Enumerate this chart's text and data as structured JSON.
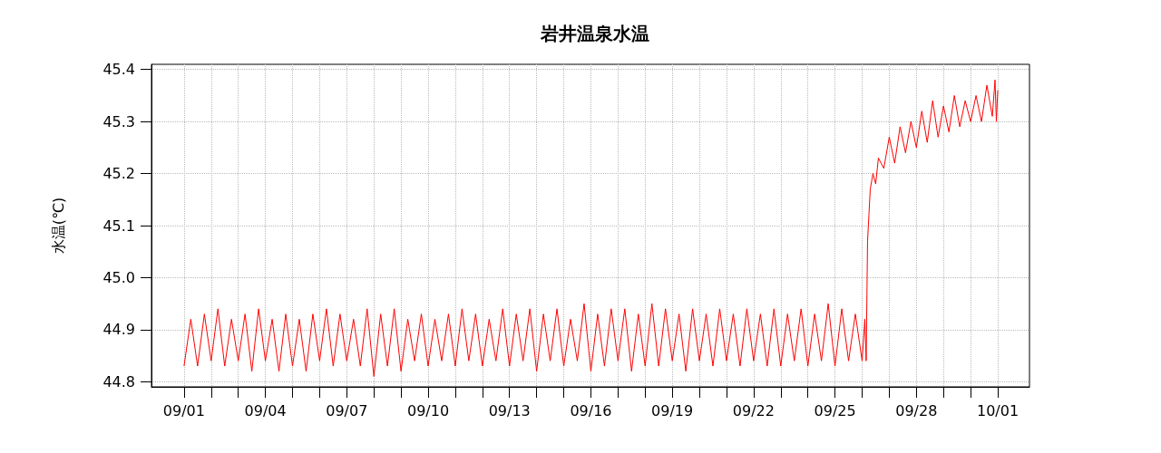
{
  "chart_data": {
    "type": "line",
    "title": "岩井温泉水温",
    "ylabel": "水温(℃)",
    "xlim": [
      "--08-30T19:12",
      "--10-02T04:05"
    ],
    "ylim": [
      44.79,
      45.41
    ],
    "xticks": [
      {
        "value": "--09-01",
        "label": "09/01"
      },
      {
        "value": "--09-02",
        "label": null
      },
      {
        "value": "--09-03",
        "label": null
      },
      {
        "value": "--09-04",
        "label": "09/04"
      },
      {
        "value": "--09-05",
        "label": null
      },
      {
        "value": "--09-06",
        "label": null
      },
      {
        "value": "--09-07",
        "label": "09/07"
      },
      {
        "value": "--09-08",
        "label": null
      },
      {
        "value": "--09-09",
        "label": null
      },
      {
        "value": "--09-10",
        "label": "09/10"
      },
      {
        "value": "--09-11",
        "label": null
      },
      {
        "value": "--09-12",
        "label": null
      },
      {
        "value": "--09-13",
        "label": "09/13"
      },
      {
        "value": "--09-14",
        "label": null
      },
      {
        "value": "--09-15",
        "label": null
      },
      {
        "value": "--09-16",
        "label": "09/16"
      },
      {
        "value": "--09-17",
        "label": null
      },
      {
        "value": "--09-18",
        "label": null
      },
      {
        "value": "--09-19",
        "label": "09/19"
      },
      {
        "value": "--09-20",
        "label": null
      },
      {
        "value": "--09-21",
        "label": null
      },
      {
        "value": "--09-22",
        "label": "09/22"
      },
      {
        "value": "--09-23",
        "label": null
      },
      {
        "value": "--09-24",
        "label": null
      },
      {
        "value": "--09-25",
        "label": "09/25"
      },
      {
        "value": "--09-26",
        "label": null
      },
      {
        "value": "--09-27",
        "label": null
      },
      {
        "value": "--09-28",
        "label": "09/28"
      },
      {
        "value": "--09-29",
        "label": null
      },
      {
        "value": "--09-30",
        "label": null
      },
      {
        "value": "--10-01",
        "label": "10/01"
      }
    ],
    "yticks": [
      44.8,
      44.9,
      {
        "value": 45,
        "label": "45.0"
      },
      45.1,
      45.2,
      45.3,
      45.4
    ],
    "grid": true,
    "marker": "none",
    "line_style": "solid",
    "series": [
      {
        "color": "#ff0000",
        "x": [
          "--09-01T00:00",
          "--09-01T06:00",
          "--09-01T12:00",
          "--09-01T18:00",
          "--09-02T00:00",
          "--09-02T06:00",
          "--09-02T12:00",
          "--09-02T18:00",
          "--09-03T00:00",
          "--09-03T06:00",
          "--09-03T12:00",
          "--09-03T18:00",
          "--09-04T00:00",
          "--09-04T06:00",
          "--09-04T12:00",
          "--09-04T18:00",
          "--09-05T00:00",
          "--09-05T06:00",
          "--09-05T12:00",
          "--09-05T18:00",
          "--09-06T00:00",
          "--09-06T06:00",
          "--09-06T12:00",
          "--09-06T18:00",
          "--09-07T00:00",
          "--09-07T06:00",
          "--09-07T12:00",
          "--09-07T18:00",
          "--09-08T00:00",
          "--09-08T06:00",
          "--09-08T12:00",
          "--09-08T18:00",
          "--09-09T00:00",
          "--09-09T06:00",
          "--09-09T12:00",
          "--09-09T18:00",
          "--09-10T00:00",
          "--09-10T06:00",
          "--09-10T12:00",
          "--09-10T18:00",
          "--09-11T00:00",
          "--09-11T06:00",
          "--09-11T12:00",
          "--09-11T18:00",
          "--09-12T00:00",
          "--09-12T06:00",
          "--09-12T12:00",
          "--09-12T18:00",
          "--09-13T00:00",
          "--09-13T06:00",
          "--09-13T12:00",
          "--09-13T18:00",
          "--09-14T00:00",
          "--09-14T06:00",
          "--09-14T12:00",
          "--09-14T18:00",
          "--09-15T00:00",
          "--09-15T06:00",
          "--09-15T12:00",
          "--09-15T18:00",
          "--09-16T00:00",
          "--09-16T06:00",
          "--09-16T12:00",
          "--09-16T18:00",
          "--09-17T00:00",
          "--09-17T06:00",
          "--09-17T12:00",
          "--09-17T18:00",
          "--09-18T00:00",
          "--09-18T06:00",
          "--09-18T12:00",
          "--09-18T18:00",
          "--09-19T00:00",
          "--09-19T06:00",
          "--09-19T12:00",
          "--09-19T18:00",
          "--09-20T00:00",
          "--09-20T06:00",
          "--09-20T12:00",
          "--09-20T18:00",
          "--09-21T00:00",
          "--09-21T06:00",
          "--09-21T12:00",
          "--09-21T18:00",
          "--09-22T00:00",
          "--09-22T06:00",
          "--09-22T12:00",
          "--09-22T18:00",
          "--09-23T00:00",
          "--09-23T06:00",
          "--09-23T12:00",
          "--09-23T18:00",
          "--09-24T00:00",
          "--09-24T06:00",
          "--09-24T12:00",
          "--09-24T18:00",
          "--09-25T00:00",
          "--09-25T06:00",
          "--09-25T12:00",
          "--09-25T18:00",
          "--09-26T00:00",
          "--09-26T02:24",
          "--09-26T03:36",
          "--09-26T04:48",
          "--09-26T06:00",
          "--09-26T07:12",
          "--09-26T09:36",
          "--09-26T12:00",
          "--09-26T14:24",
          "--09-26T19:12",
          "--09-27T00:00",
          "--09-27T04:48",
          "--09-27T09:36",
          "--09-27T14:24",
          "--09-27T19:12",
          "--09-28T00:00",
          "--09-28T04:48",
          "--09-28T09:36",
          "--09-28T14:24",
          "--09-28T19:12",
          "--09-29T00:00",
          "--09-29T04:48",
          "--09-29T09:36",
          "--09-29T14:24",
          "--09-29T19:12",
          "--09-30T00:00",
          "--09-30T04:48",
          "--09-30T09:36",
          "--09-30T14:24",
          "--09-30T19:12",
          "--09-30T21:36",
          "--09-30T22:48",
          "--10-01T00:00"
        ],
        "values": [
          44.83,
          44.92,
          44.83,
          44.93,
          44.84,
          44.94,
          44.83,
          44.92,
          44.84,
          44.93,
          44.82,
          44.94,
          44.84,
          44.92,
          44.82,
          44.93,
          44.83,
          44.92,
          44.82,
          44.93,
          44.84,
          44.94,
          44.83,
          44.93,
          44.84,
          44.92,
          44.83,
          44.94,
          44.81,
          44.93,
          44.83,
          44.94,
          44.82,
          44.92,
          44.84,
          44.93,
          44.83,
          44.92,
          44.84,
          44.93,
          44.83,
          44.94,
          44.84,
          44.93,
          44.83,
          44.92,
          44.84,
          44.94,
          44.83,
          44.93,
          44.84,
          44.94,
          44.82,
          44.93,
          44.84,
          44.94,
          44.83,
          44.92,
          44.84,
          44.95,
          44.82,
          44.93,
          44.83,
          44.94,
          44.84,
          44.94,
          44.82,
          44.93,
          44.83,
          44.95,
          44.83,
          44.94,
          44.84,
          44.93,
          44.82,
          44.94,
          44.84,
          44.93,
          44.83,
          44.94,
          44.84,
          44.93,
          44.83,
          44.94,
          44.84,
          44.93,
          44.83,
          44.94,
          44.83,
          44.93,
          44.84,
          44.94,
          44.83,
          44.93,
          44.84,
          44.95,
          44.83,
          44.94,
          44.84,
          44.93,
          44.84,
          44.92,
          44.84,
          45.07,
          45.12,
          45.17,
          45.2,
          45.18,
          45.23,
          45.21,
          45.27,
          45.22,
          45.29,
          45.24,
          45.3,
          45.25,
          45.32,
          45.26,
          45.34,
          45.27,
          45.33,
          45.28,
          45.35,
          45.29,
          45.34,
          45.3,
          45.35,
          45.3,
          45.37,
          45.31,
          45.38,
          45.3,
          45.36
        ]
      }
    ]
  }
}
